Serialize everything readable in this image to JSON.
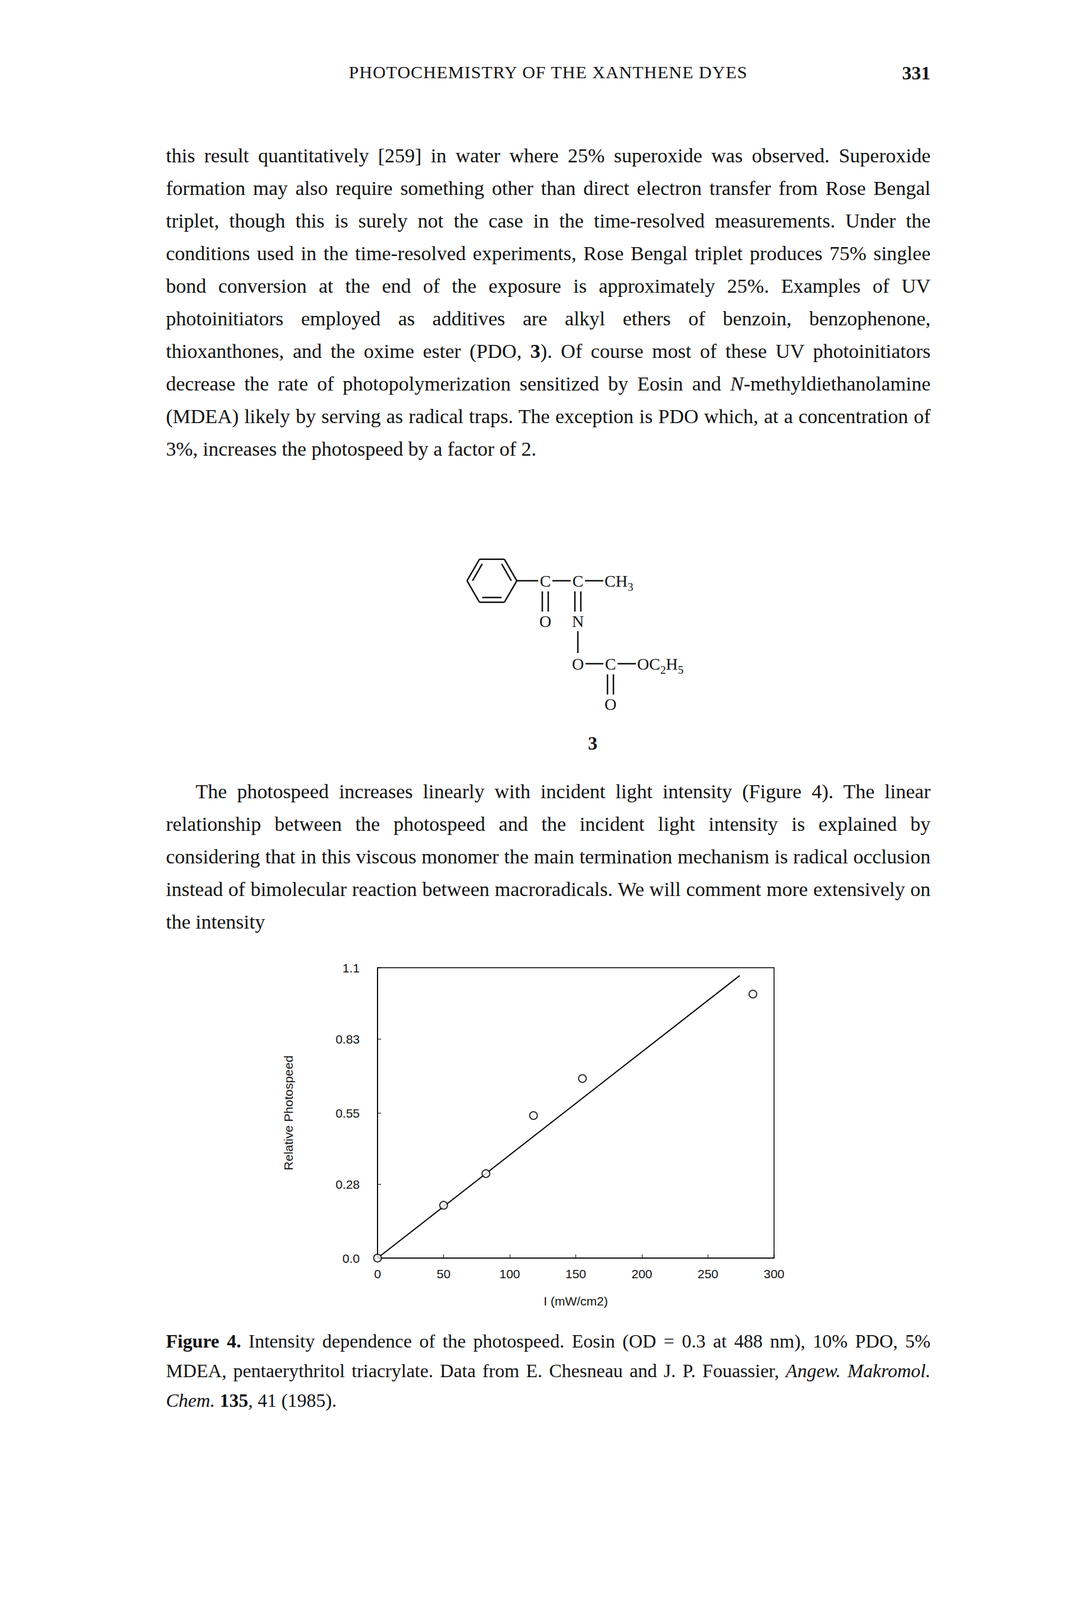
{
  "header": {
    "title": "PHOTOCHEMISTRY OF THE XANTHENE DYES",
    "page": "331"
  },
  "paragraphs": [
    [
      "this result quantitatively [259] in water where 25% superoxide was observed. Superoxide formation may also require something other than direct electron transfer from Rose Bengal triplet, though this is surely not the case in the time-resolved measurements. Under the conditions used in the time-resolved experiments, Rose Bengal triplet produces 75% singlee bond conversion at the end of the exposure is approximately 25%. Examples of UV photoinitiators employed as additives are alkyl ethers of benzoin, benzophenone, thioxanthones, and the oxime ester (PDO, ",
      {
        "text": "3",
        "bold": true
      },
      "). Of course most of these UV photoinitiators decrease the rate of photopolymerization sensitized by Eosin and ",
      {
        "text": "N",
        "italic": true
      },
      "-methyldiethanolamine (MDEA) likely by serving as radical traps. The exception is PDO which, at a concentration of 3%, increases the photospeed by a factor of 2."
    ],
    [
      "The photospeed increases linearly with incident light intensity (Figure 4). The linear relationship between the photospeed and the incident light intensity is explained by considering that in this viscous monomer the main termination mechanism is radical occlusion instead of bimolecular reaction between macroradicals. We will comment more extensively on the intensity"
    ]
  ],
  "structure": {
    "atoms": [
      "C",
      "C",
      "CH3",
      "O",
      "N",
      "O",
      "C",
      "OC2H5",
      "O"
    ],
    "number": "3"
  },
  "caption": [
    {
      "text": "Figure 4.",
      "bold": true
    },
    " Intensity dependence of the photospeed. Eosin (OD = 0.3 at 488 nm), 10% PDO, 5% MDEA, pentaerythritol triacrylate. Data from E. Chesneau and J. P. Fouassier, ",
    {
      "text": "Angew. Makromol. Chem.",
      "italic": true
    },
    " ",
    {
      "text": "135",
      "bold": true
    },
    ", 41 (1985)."
  ],
  "chart_data": {
    "type": "scatter",
    "x_label": "I (mW/cm2)",
    "y_label": "Relative Photospeed",
    "xlim": [
      0,
      300
    ],
    "xticks": [
      0,
      50,
      100,
      150,
      200,
      250,
      300
    ],
    "ylim": [
      0,
      1.1
    ],
    "yticks": [
      {
        "value": 0,
        "label": "0.0"
      },
      0.28,
      0.55,
      0.83,
      1.1
    ],
    "grid": false,
    "color": "#000000",
    "series": [
      {
        "type": "scatter",
        "marker": "open_circle",
        "x": [
          0,
          50,
          82,
          118,
          155,
          284
        ],
        "values": [
          0,
          0.2,
          0.32,
          0.54,
          0.68,
          1.0
        ]
      },
      {
        "type": "line",
        "line_style": "solid",
        "x": [
          0,
          274
        ],
        "values": [
          0,
          1.07
        ]
      }
    ]
  }
}
